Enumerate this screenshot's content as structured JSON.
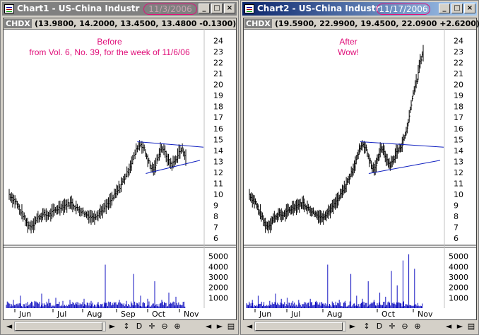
{
  "windows": [
    {
      "title": "Chart1 - US-China Industr",
      "date_badge": "11/3/2006",
      "active": false,
      "symbol": "CHDX",
      "ohlc_readout": "(13.9800, 14.2000, 13.4500, 13.4800 -0.1300)",
      "annotation": [
        "Before",
        "from Vol. 6, No. 39, for the week of 11/6/06"
      ],
      "months": [
        "Jun",
        "Jul",
        "Aug",
        "Sep",
        "Oct",
        "Nov"
      ]
    },
    {
      "title": "Chart2 - US-China Industr",
      "date_badge": "11/17/2006",
      "active": true,
      "symbol": "CHDX",
      "ohlc_readout": "(19.5900, 22.9900, 19.4500, 22.0900 +2.6200)",
      "annotation": [
        "After",
        "Wow!"
      ],
      "months": [
        "Jun",
        "Jul",
        "Aug",
        "Oct",
        "Nov"
      ]
    }
  ],
  "controls": {
    "minimize": "_",
    "maximize": "□",
    "close": "×",
    "scroll_left": "◄",
    "scroll_right": "►",
    "reset": "↕",
    "display": "D",
    "move": "✛",
    "zoom_out": "⊖",
    "zoom_in": "⊕",
    "page_left": "◄",
    "page_right": "►",
    "menu": "▤"
  },
  "chart_data": [
    {
      "type": "bar",
      "series": [
        {
          "name": "CHDX",
          "kind": "ohlc"
        }
      ],
      "price_axis": {
        "ticks": [
          6,
          7,
          8,
          9,
          10,
          11,
          12,
          13,
          14,
          15,
          16,
          17,
          18,
          19,
          20,
          21,
          22,
          23,
          24
        ],
        "ylim": [
          5.5,
          24.8
        ]
      },
      "volume_axis": {
        "ticks": [
          1000,
          2000,
          3000,
          4000,
          5000
        ],
        "ylim": [
          0,
          5800
        ]
      },
      "x_labels": [
        "Jun",
        "Jul",
        "Aug",
        "Sep",
        "Oct",
        "Nov"
      ],
      "close_path": [
        10.0,
        9.6,
        9.3,
        8.6,
        8.1,
        7.4,
        7.1,
        7.3,
        7.8,
        8.0,
        8.2,
        8.1,
        8.2,
        8.5,
        8.7,
        8.9,
        9.0,
        9.1,
        9.2,
        8.9,
        8.6,
        8.5,
        8.2,
        8.1,
        7.9,
        8.1,
        8.3,
        8.6,
        8.9,
        9.3,
        9.7,
        10.2,
        10.7,
        11.3,
        11.9,
        12.6,
        13.4,
        14.3,
        14.6,
        14.1,
        13.2,
        12.4,
        12.3,
        13.5,
        14.3,
        13.8,
        13.0,
        12.7,
        13.1,
        13.8,
        14.1,
        13.5
      ],
      "triangle": {
        "upper": [
          14.8,
          14.3
        ],
        "lower": [
          11.9,
          13.1
        ]
      },
      "volume_spikes": [
        800,
        1200,
        600,
        700,
        1400,
        900,
        1000,
        700,
        800,
        600,
        900,
        700,
        600,
        4200,
        500,
        800,
        700,
        3300,
        1200,
        900,
        2600,
        800,
        1500,
        1100
      ]
    },
    {
      "type": "bar",
      "series": [
        {
          "name": "CHDX",
          "kind": "ohlc"
        }
      ],
      "price_axis": {
        "ticks": [
          6,
          7,
          8,
          9,
          10,
          11,
          12,
          13,
          14,
          15,
          16,
          17,
          18,
          19,
          20,
          21,
          22,
          23,
          24
        ],
        "ylim": [
          5.5,
          24.8
        ]
      },
      "volume_axis": {
        "ticks": [
          1000,
          2000,
          3000,
          4000,
          5000
        ],
        "ylim": [
          0,
          5800
        ]
      },
      "x_labels": [
        "Jun",
        "Jul",
        "Aug",
        "Oct",
        "Nov"
      ],
      "close_path": [
        10.0,
        9.6,
        9.3,
        8.6,
        8.1,
        7.4,
        7.1,
        7.3,
        7.8,
        8.0,
        8.2,
        8.1,
        8.2,
        8.5,
        8.7,
        8.9,
        9.0,
        9.1,
        9.2,
        8.9,
        8.6,
        8.5,
        8.2,
        8.1,
        7.9,
        8.1,
        8.3,
        8.6,
        8.9,
        9.3,
        9.7,
        10.2,
        10.7,
        11.3,
        11.9,
        12.6,
        13.4,
        14.3,
        14.6,
        14.1,
        13.2,
        12.4,
        12.3,
        13.5,
        14.3,
        13.8,
        13.0,
        12.7,
        13.1,
        13.8,
        14.1,
        14.6,
        15.4,
        16.5,
        18.3,
        19.6,
        20.4,
        22.1,
        23.0
      ],
      "triangle": {
        "upper": [
          14.8,
          14.3
        ],
        "lower": [
          11.9,
          13.1
        ]
      },
      "volume_spikes": [
        800,
        1200,
        600,
        700,
        1400,
        900,
        1000,
        700,
        800,
        600,
        900,
        700,
        600,
        4200,
        500,
        800,
        700,
        3300,
        1200,
        900,
        2600,
        800,
        1500,
        1100,
        3600,
        2200,
        4600,
        5200,
        3800
      ]
    }
  ]
}
